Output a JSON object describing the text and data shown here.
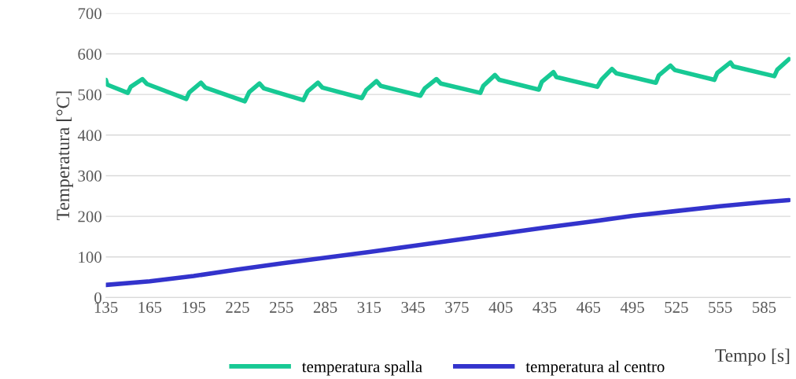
{
  "chart_data": {
    "type": "line",
    "xlabel": "Tempo [s]",
    "ylabel": "Temperatura [°C]",
    "xlim": [
      135,
      603
    ],
    "xticks": [
      135,
      165,
      195,
      225,
      255,
      285,
      315,
      345,
      375,
      405,
      435,
      465,
      495,
      525,
      555,
      585
    ],
    "ylim": [
      0,
      700
    ],
    "yticks": [
      0,
      100,
      200,
      300,
      400,
      500,
      600,
      700
    ],
    "grid": "y",
    "legend": "bottom",
    "marker": "none",
    "line_style": "solid",
    "series": [
      {
        "name": "temperatura spalla",
        "color": "#17c994",
        "x": [
          135,
          136,
          150,
          152,
          160,
          163,
          190,
          192,
          200,
          203,
          230,
          233,
          240,
          243,
          270,
          273,
          280,
          283,
          310,
          313,
          320,
          323,
          350,
          353,
          361,
          364,
          391,
          393,
          401,
          404,
          431,
          433,
          441,
          443,
          471,
          474,
          481,
          484,
          511,
          513,
          521,
          524,
          551,
          553,
          562,
          564,
          592,
          594,
          602
        ],
        "values": [
          536,
          524,
          504,
          519,
          538,
          526,
          489,
          505,
          529,
          517,
          483,
          506,
          527,
          515,
          486,
          508,
          529,
          517,
          491,
          511,
          533,
          521,
          497,
          515,
          538,
          527,
          504,
          521,
          548,
          536,
          512,
          531,
          555,
          543,
          519,
          537,
          563,
          552,
          529,
          547,
          571,
          560,
          536,
          553,
          579,
          569,
          545,
          561,
          587
        ]
      },
      {
        "name": "temperatura al centro",
        "color": "#3333cc",
        "x": [
          135,
          165,
          195,
          225,
          255,
          285,
          315,
          345,
          375,
          405,
          435,
          465,
          495,
          525,
          555,
          585,
          602
        ],
        "values": [
          31,
          40,
          53,
          69,
          84,
          98,
          112,
          127,
          142,
          157,
          172,
          186,
          201,
          213,
          225,
          235,
          240
        ]
      }
    ]
  }
}
